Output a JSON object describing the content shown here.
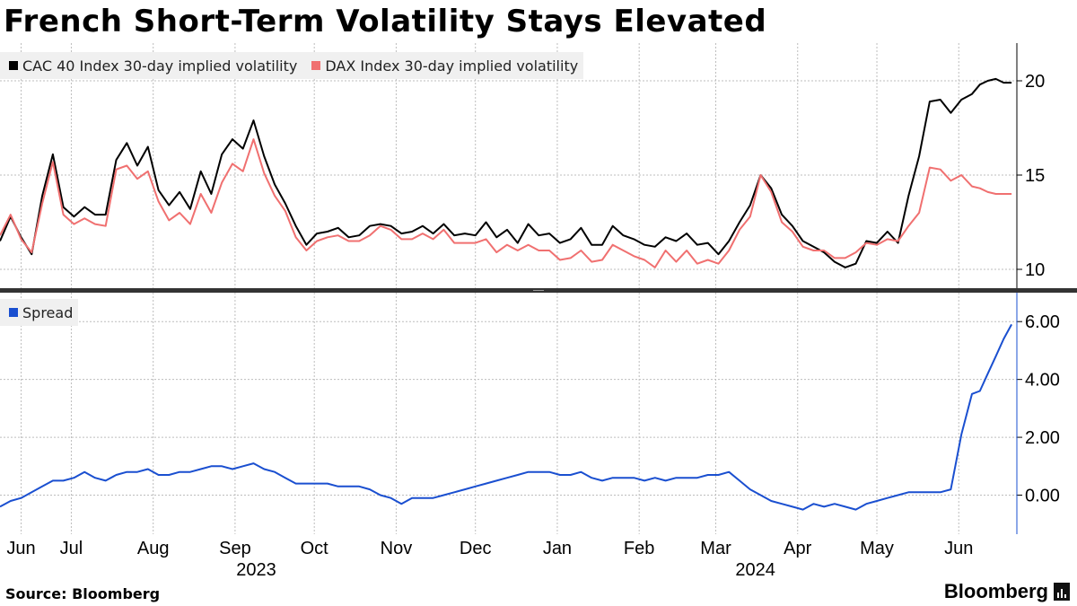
{
  "title": "French Short-Term Volatility Stays Elevated",
  "source": "Source: Bloomberg",
  "brand": "Bloomberg",
  "chart_data": [
    {
      "type": "line",
      "panel": "top",
      "ylim": [
        9,
        22
      ],
      "yticks": [
        10,
        15,
        20
      ],
      "ytick_labels": [
        "10",
        "15",
        "20"
      ],
      "grid": true,
      "legend_position": "top-left",
      "x_unit": "days since 2023-06-01",
      "xlim": [
        0,
        385
      ],
      "series": [
        {
          "name": "CAC 40 Index 30-day implied volatility",
          "color": "#000000",
          "x": [
            0,
            4,
            8,
            12,
            16,
            20,
            24,
            28,
            32,
            36,
            40,
            44,
            48,
            52,
            56,
            60,
            64,
            68,
            72,
            76,
            80,
            84,
            88,
            92,
            96,
            100,
            104,
            108,
            112,
            116,
            120,
            124,
            128,
            132,
            136,
            140,
            144,
            148,
            152,
            156,
            160,
            164,
            168,
            172,
            176,
            180,
            184,
            188,
            192,
            196,
            200,
            204,
            208,
            212,
            216,
            220,
            224,
            228,
            232,
            236,
            240,
            244,
            248,
            252,
            256,
            260,
            264,
            268,
            272,
            276,
            280,
            284,
            288,
            292,
            296,
            300,
            304,
            308,
            312,
            316,
            320,
            324,
            328,
            332,
            336,
            340,
            344,
            348,
            352,
            356,
            360,
            364,
            368,
            371,
            374,
            377,
            380,
            383
          ],
          "y": [
            11.5,
            12.8,
            11.7,
            10.8,
            13.9,
            16.1,
            13.3,
            12.8,
            13.3,
            12.9,
            12.9,
            15.8,
            16.7,
            15.5,
            16.5,
            14.2,
            13.4,
            14.1,
            13.2,
            15.2,
            14.0,
            16.1,
            16.9,
            16.4,
            17.9,
            16.0,
            14.5,
            13.5,
            12.3,
            11.3,
            11.9,
            12.0,
            12.2,
            11.7,
            11.8,
            12.3,
            12.4,
            12.3,
            11.9,
            12.0,
            12.3,
            11.9,
            12.4,
            11.8,
            11.9,
            11.8,
            12.5,
            11.7,
            12.1,
            11.4,
            12.4,
            11.8,
            11.9,
            11.4,
            11.6,
            12.2,
            11.3,
            11.3,
            12.3,
            11.8,
            11.6,
            11.3,
            11.2,
            11.7,
            11.5,
            11.9,
            11.3,
            11.4,
            10.8,
            11.5,
            12.5,
            13.4,
            15.0,
            14.3,
            12.9,
            12.3,
            11.5,
            11.2,
            10.9,
            10.4,
            10.1,
            10.3,
            11.5,
            11.4,
            12.0,
            11.4,
            13.9,
            16.0,
            18.9,
            19.0,
            18.3,
            19.0,
            19.3,
            19.8,
            20.0,
            20.1,
            19.9,
            19.9
          ]
        },
        {
          "name": "DAX Index 30-day implied volatility",
          "color": "#f07070",
          "x": [
            0,
            4,
            8,
            12,
            16,
            20,
            24,
            28,
            32,
            36,
            40,
            44,
            48,
            52,
            56,
            60,
            64,
            68,
            72,
            76,
            80,
            84,
            88,
            92,
            96,
            100,
            104,
            108,
            112,
            116,
            120,
            124,
            128,
            132,
            136,
            140,
            144,
            148,
            152,
            156,
            160,
            164,
            168,
            172,
            176,
            180,
            184,
            188,
            192,
            196,
            200,
            204,
            208,
            212,
            216,
            220,
            224,
            228,
            232,
            236,
            240,
            244,
            248,
            252,
            256,
            260,
            264,
            268,
            272,
            276,
            280,
            284,
            288,
            292,
            296,
            300,
            304,
            308,
            312,
            316,
            320,
            324,
            328,
            332,
            336,
            340,
            344,
            348,
            352,
            356,
            360,
            364,
            368,
            371,
            374,
            377,
            380,
            383
          ],
          "y": [
            11.8,
            12.9,
            11.6,
            10.9,
            13.5,
            15.7,
            12.9,
            12.4,
            12.7,
            12.4,
            12.3,
            15.3,
            15.5,
            14.8,
            15.2,
            13.6,
            12.6,
            13.0,
            12.4,
            14.0,
            13.0,
            14.6,
            15.6,
            15.2,
            16.9,
            15.1,
            13.9,
            13.1,
            11.7,
            11.0,
            11.5,
            11.7,
            11.8,
            11.5,
            11.5,
            11.8,
            12.3,
            12.1,
            11.6,
            11.6,
            11.9,
            11.6,
            12.1,
            11.4,
            11.4,
            11.4,
            11.6,
            10.9,
            11.3,
            11.0,
            11.3,
            11.0,
            11.0,
            10.5,
            10.6,
            11.0,
            10.4,
            10.5,
            11.3,
            11.0,
            10.7,
            10.5,
            10.1,
            11.0,
            10.4,
            11.0,
            10.3,
            10.5,
            10.3,
            11.0,
            12.1,
            12.8,
            15.0,
            14.1,
            12.5,
            12.0,
            11.2,
            11.0,
            11.0,
            10.6,
            10.6,
            10.9,
            11.4,
            11.3,
            11.6,
            11.5,
            12.3,
            13.0,
            15.4,
            15.3,
            14.7,
            15.0,
            14.4,
            14.3,
            14.1,
            14.0,
            14.0,
            14.0
          ]
        }
      ]
    },
    {
      "type": "line",
      "panel": "bottom",
      "ylim": [
        -1.35,
        7.0
      ],
      "yticks": [
        0,
        2,
        4,
        6
      ],
      "ytick_labels": [
        "0.00",
        "2.00",
        "4.00",
        "6.00"
      ],
      "grid": true,
      "legend_position": "top-left",
      "x_unit": "days since 2023-06-01",
      "xlim": [
        0,
        385
      ],
      "series": [
        {
          "name": "Spread",
          "color": "#1a4fd0",
          "x": [
            0,
            4,
            8,
            12,
            16,
            20,
            24,
            28,
            32,
            36,
            40,
            44,
            48,
            52,
            56,
            60,
            64,
            68,
            72,
            76,
            80,
            84,
            88,
            92,
            96,
            100,
            104,
            108,
            112,
            116,
            120,
            124,
            128,
            132,
            136,
            140,
            144,
            148,
            152,
            156,
            160,
            164,
            168,
            172,
            176,
            180,
            184,
            188,
            192,
            196,
            200,
            204,
            208,
            212,
            216,
            220,
            224,
            228,
            232,
            236,
            240,
            244,
            248,
            252,
            256,
            260,
            264,
            268,
            272,
            276,
            280,
            284,
            288,
            292,
            296,
            300,
            304,
            308,
            312,
            316,
            320,
            324,
            328,
            332,
            336,
            340,
            344,
            348,
            352,
            356,
            360,
            364,
            368,
            371,
            374,
            377,
            380,
            383
          ],
          "y": [
            -0.4,
            -0.2,
            -0.1,
            0.1,
            0.3,
            0.5,
            0.5,
            0.6,
            0.8,
            0.6,
            0.5,
            0.7,
            0.8,
            0.8,
            0.9,
            0.7,
            0.7,
            0.8,
            0.8,
            0.9,
            1.0,
            1.0,
            0.9,
            1.0,
            1.1,
            0.9,
            0.8,
            0.6,
            0.4,
            0.4,
            0.4,
            0.4,
            0.3,
            0.3,
            0.3,
            0.2,
            0.0,
            -0.1,
            -0.3,
            -0.1,
            -0.1,
            -0.1,
            0.0,
            0.1,
            0.2,
            0.3,
            0.4,
            0.5,
            0.6,
            0.7,
            0.8,
            0.8,
            0.8,
            0.7,
            0.7,
            0.8,
            0.6,
            0.5,
            0.6,
            0.6,
            0.6,
            0.5,
            0.6,
            0.5,
            0.6,
            0.6,
            0.6,
            0.7,
            0.7,
            0.8,
            0.5,
            0.2,
            0.0,
            -0.2,
            -0.3,
            -0.4,
            -0.5,
            -0.3,
            -0.4,
            -0.3,
            -0.4,
            -0.5,
            -0.3,
            -0.2,
            -0.1,
            0.0,
            0.1,
            0.1,
            0.1,
            0.1,
            0.2,
            2.1,
            3.5,
            3.6,
            4.2,
            4.8,
            5.4,
            5.9
          ]
        }
      ]
    }
  ],
  "x_axis": {
    "months": [
      {
        "label": "Jun",
        "day": 8
      },
      {
        "label": "Jul",
        "day": 27
      },
      {
        "label": "Aug",
        "day": 58
      },
      {
        "label": "Sep",
        "day": 89
      },
      {
        "label": "Oct",
        "day": 119
      },
      {
        "label": "Nov",
        "day": 150
      },
      {
        "label": "Dec",
        "day": 180
      },
      {
        "label": "Jan",
        "day": 211
      },
      {
        "label": "Feb",
        "day": 242
      },
      {
        "label": "Mar",
        "day": 271
      },
      {
        "label": "Apr",
        "day": 302
      },
      {
        "label": "May",
        "day": 332
      },
      {
        "label": "Jun",
        "day": 363
      }
    ],
    "years": [
      {
        "label": "2023",
        "day": 97
      },
      {
        "label": "2024",
        "day": 286
      }
    ]
  },
  "colors": {
    "background": "#ffffff",
    "grid": "#bdbdbd",
    "legend_bg": "#f0f0f0",
    "divider": "#333333",
    "spread_axis": "#1a4fd0"
  }
}
